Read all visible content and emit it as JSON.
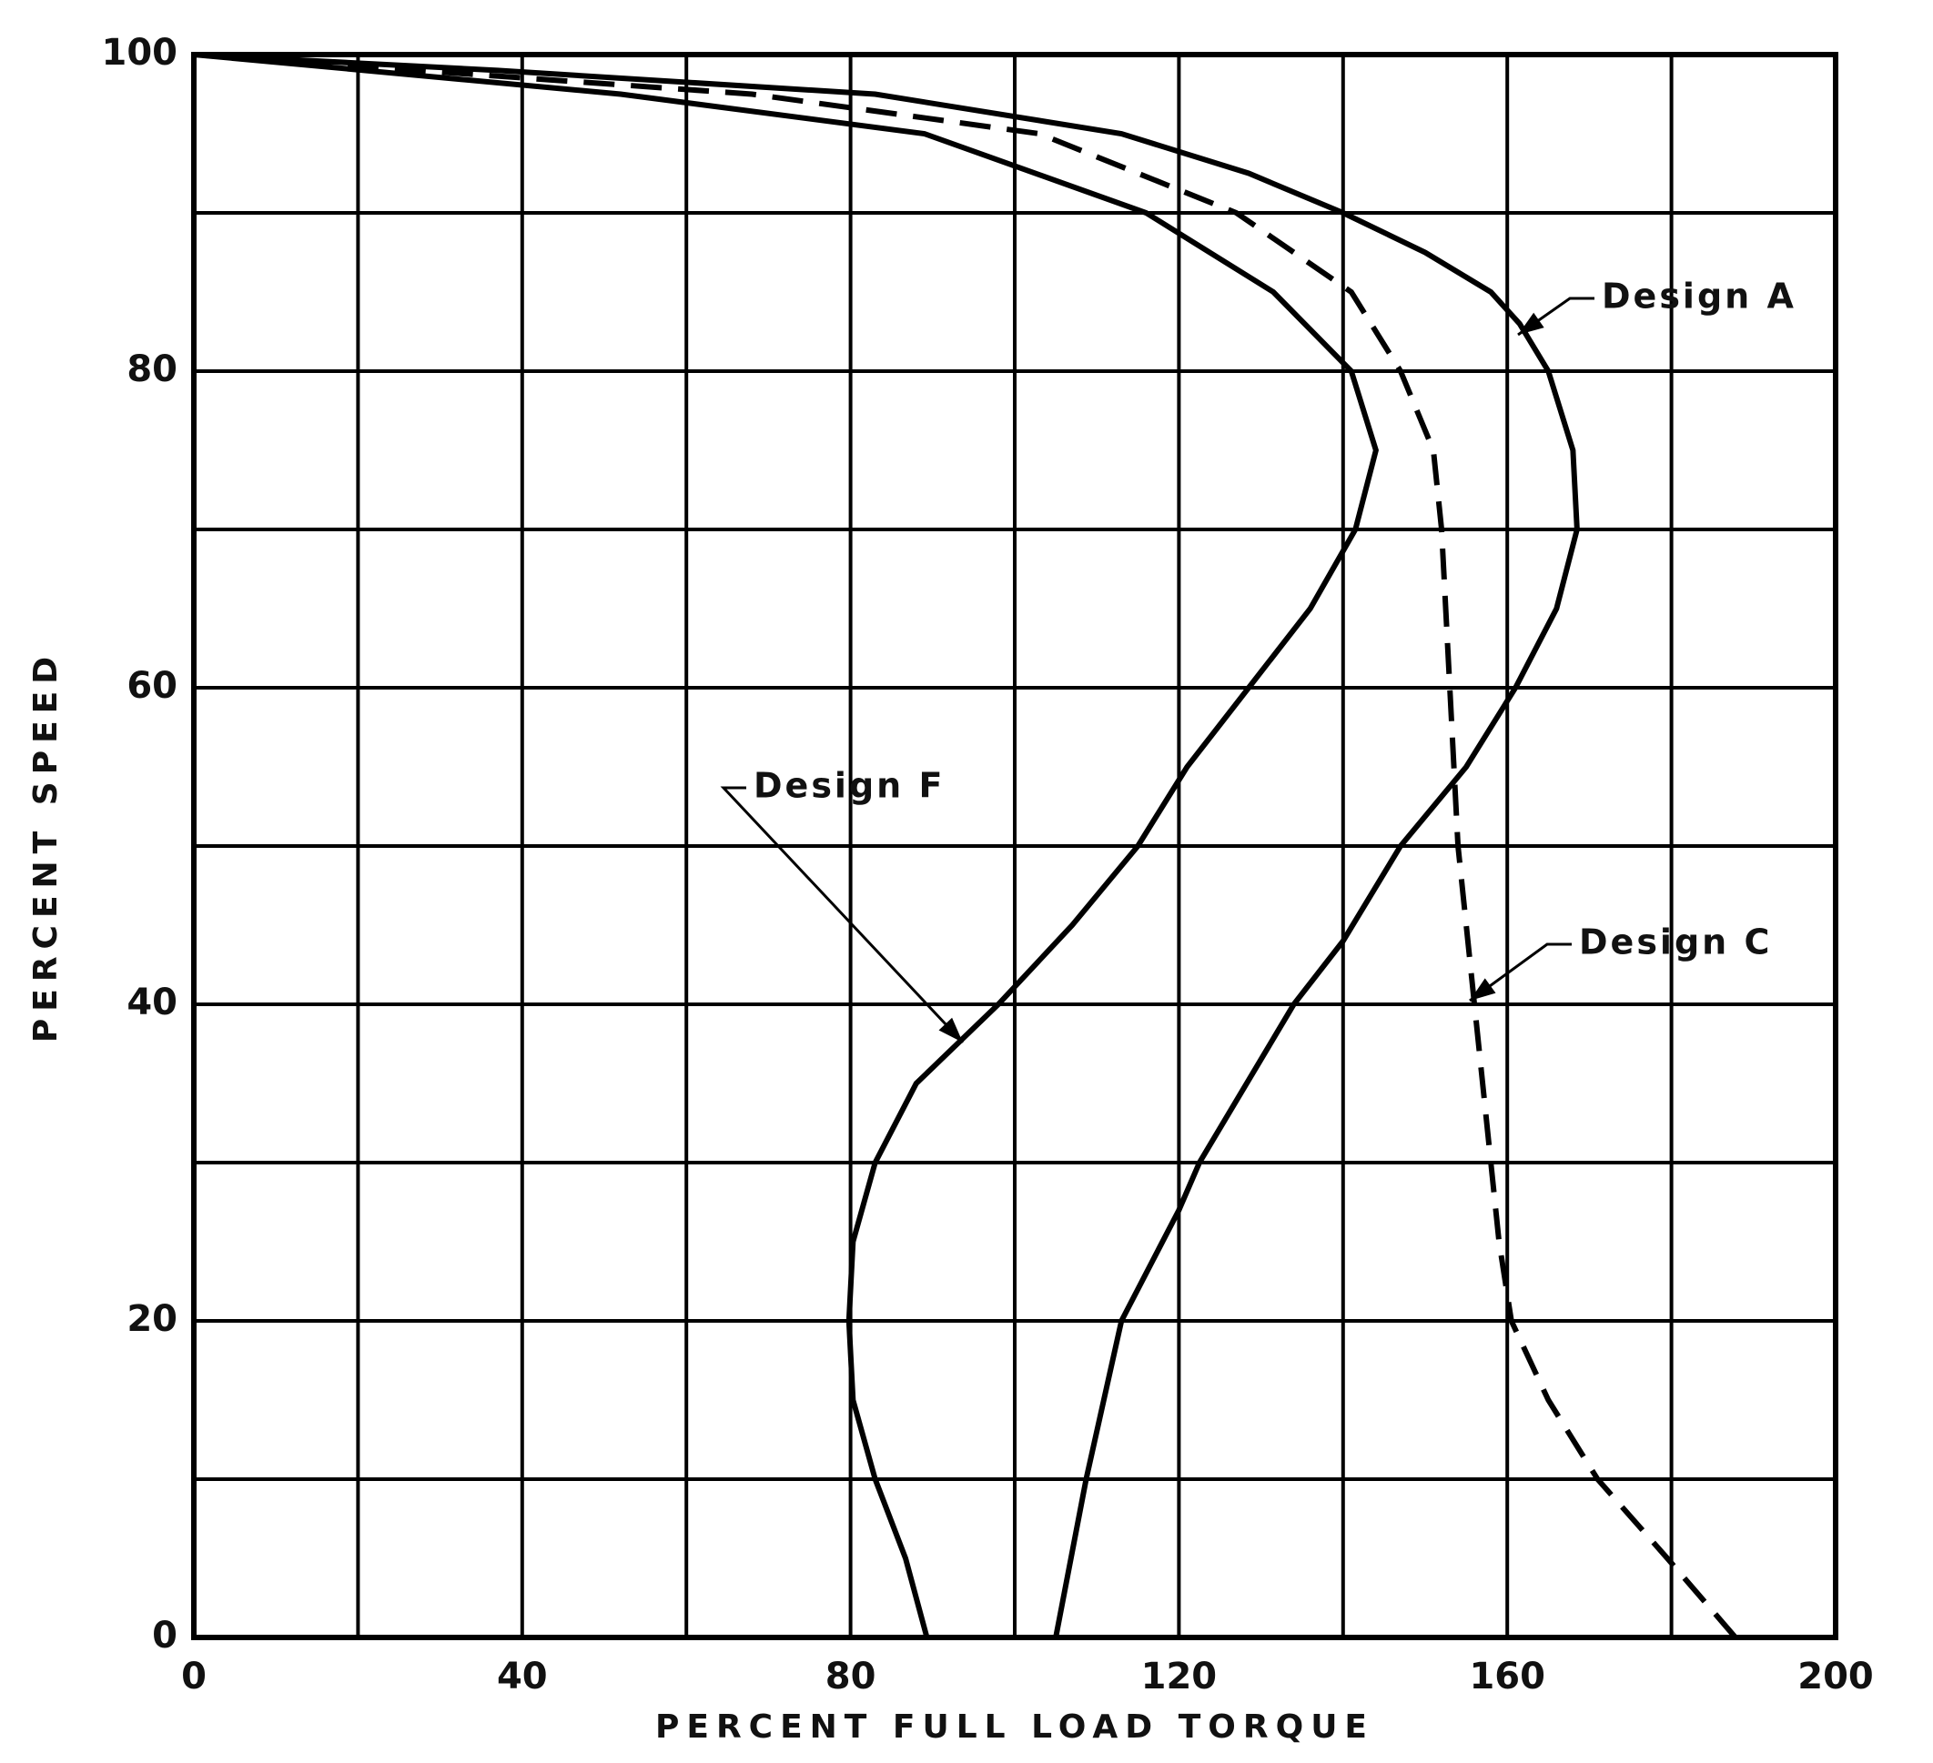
{
  "chart_data": {
    "type": "line",
    "xlabel": "PERCENT  FULL  LOAD  TORQUE",
    "ylabel": "PERCENT  SPEED",
    "xlim": [
      0,
      200
    ],
    "ylim": [
      0,
      100
    ],
    "xticks": [
      0,
      40,
      80,
      120,
      160,
      200
    ],
    "yticks": [
      0,
      20,
      40,
      60,
      80,
      100
    ],
    "xminorticks": [
      20,
      60,
      100,
      140,
      180
    ],
    "yminorticks": [
      10,
      30,
      50,
      70,
      90
    ],
    "grid": true,
    "series": [
      {
        "name": "Design A",
        "color": "#000000",
        "style": "solid",
        "x": [
          105,
          108.7,
          113,
          120,
          122.5,
          134,
          140,
          147,
          155,
          161,
          166,
          168.5,
          168,
          165,
          161.5,
          158,
          150,
          140,
          128.5,
          113,
          83,
          37,
          0
        ],
        "y": [
          0,
          10,
          20,
          27,
          30,
          40,
          44,
          50,
          55,
          60,
          65,
          70,
          75,
          80,
          83,
          85,
          87.5,
          90,
          92.5,
          95,
          97.5,
          99,
          100
        ]
      },
      {
        "name": "Design C",
        "color": "#000000",
        "style": "dashed",
        "x": [
          187.8,
          179.5,
          171,
          165,
          160.5,
          159,
          158,
          156,
          154,
          153,
          152,
          151,
          147,
          141,
          127,
          103,
          68,
          0
        ],
        "y": [
          0,
          5,
          10,
          15,
          20,
          25,
          30,
          40,
          50,
          60,
          70,
          75,
          80,
          85,
          90,
          95,
          97.5,
          100
        ]
      },
      {
        "name": "Design F",
        "color": "#000000",
        "style": "solid",
        "x": [
          89.3,
          86.7,
          83,
          80.3,
          79.8,
          80.3,
          83,
          88,
          98,
          107,
          115,
          121,
          128.5,
          136,
          141.5,
          144,
          141,
          131.5,
          116,
          89,
          52,
          0
        ],
        "y": [
          0,
          5,
          10,
          15,
          20,
          25,
          30,
          35,
          40,
          45,
          50,
          55,
          60,
          65,
          70,
          75,
          80,
          85,
          90,
          95,
          97.5,
          100
        ]
      }
    ]
  }
}
